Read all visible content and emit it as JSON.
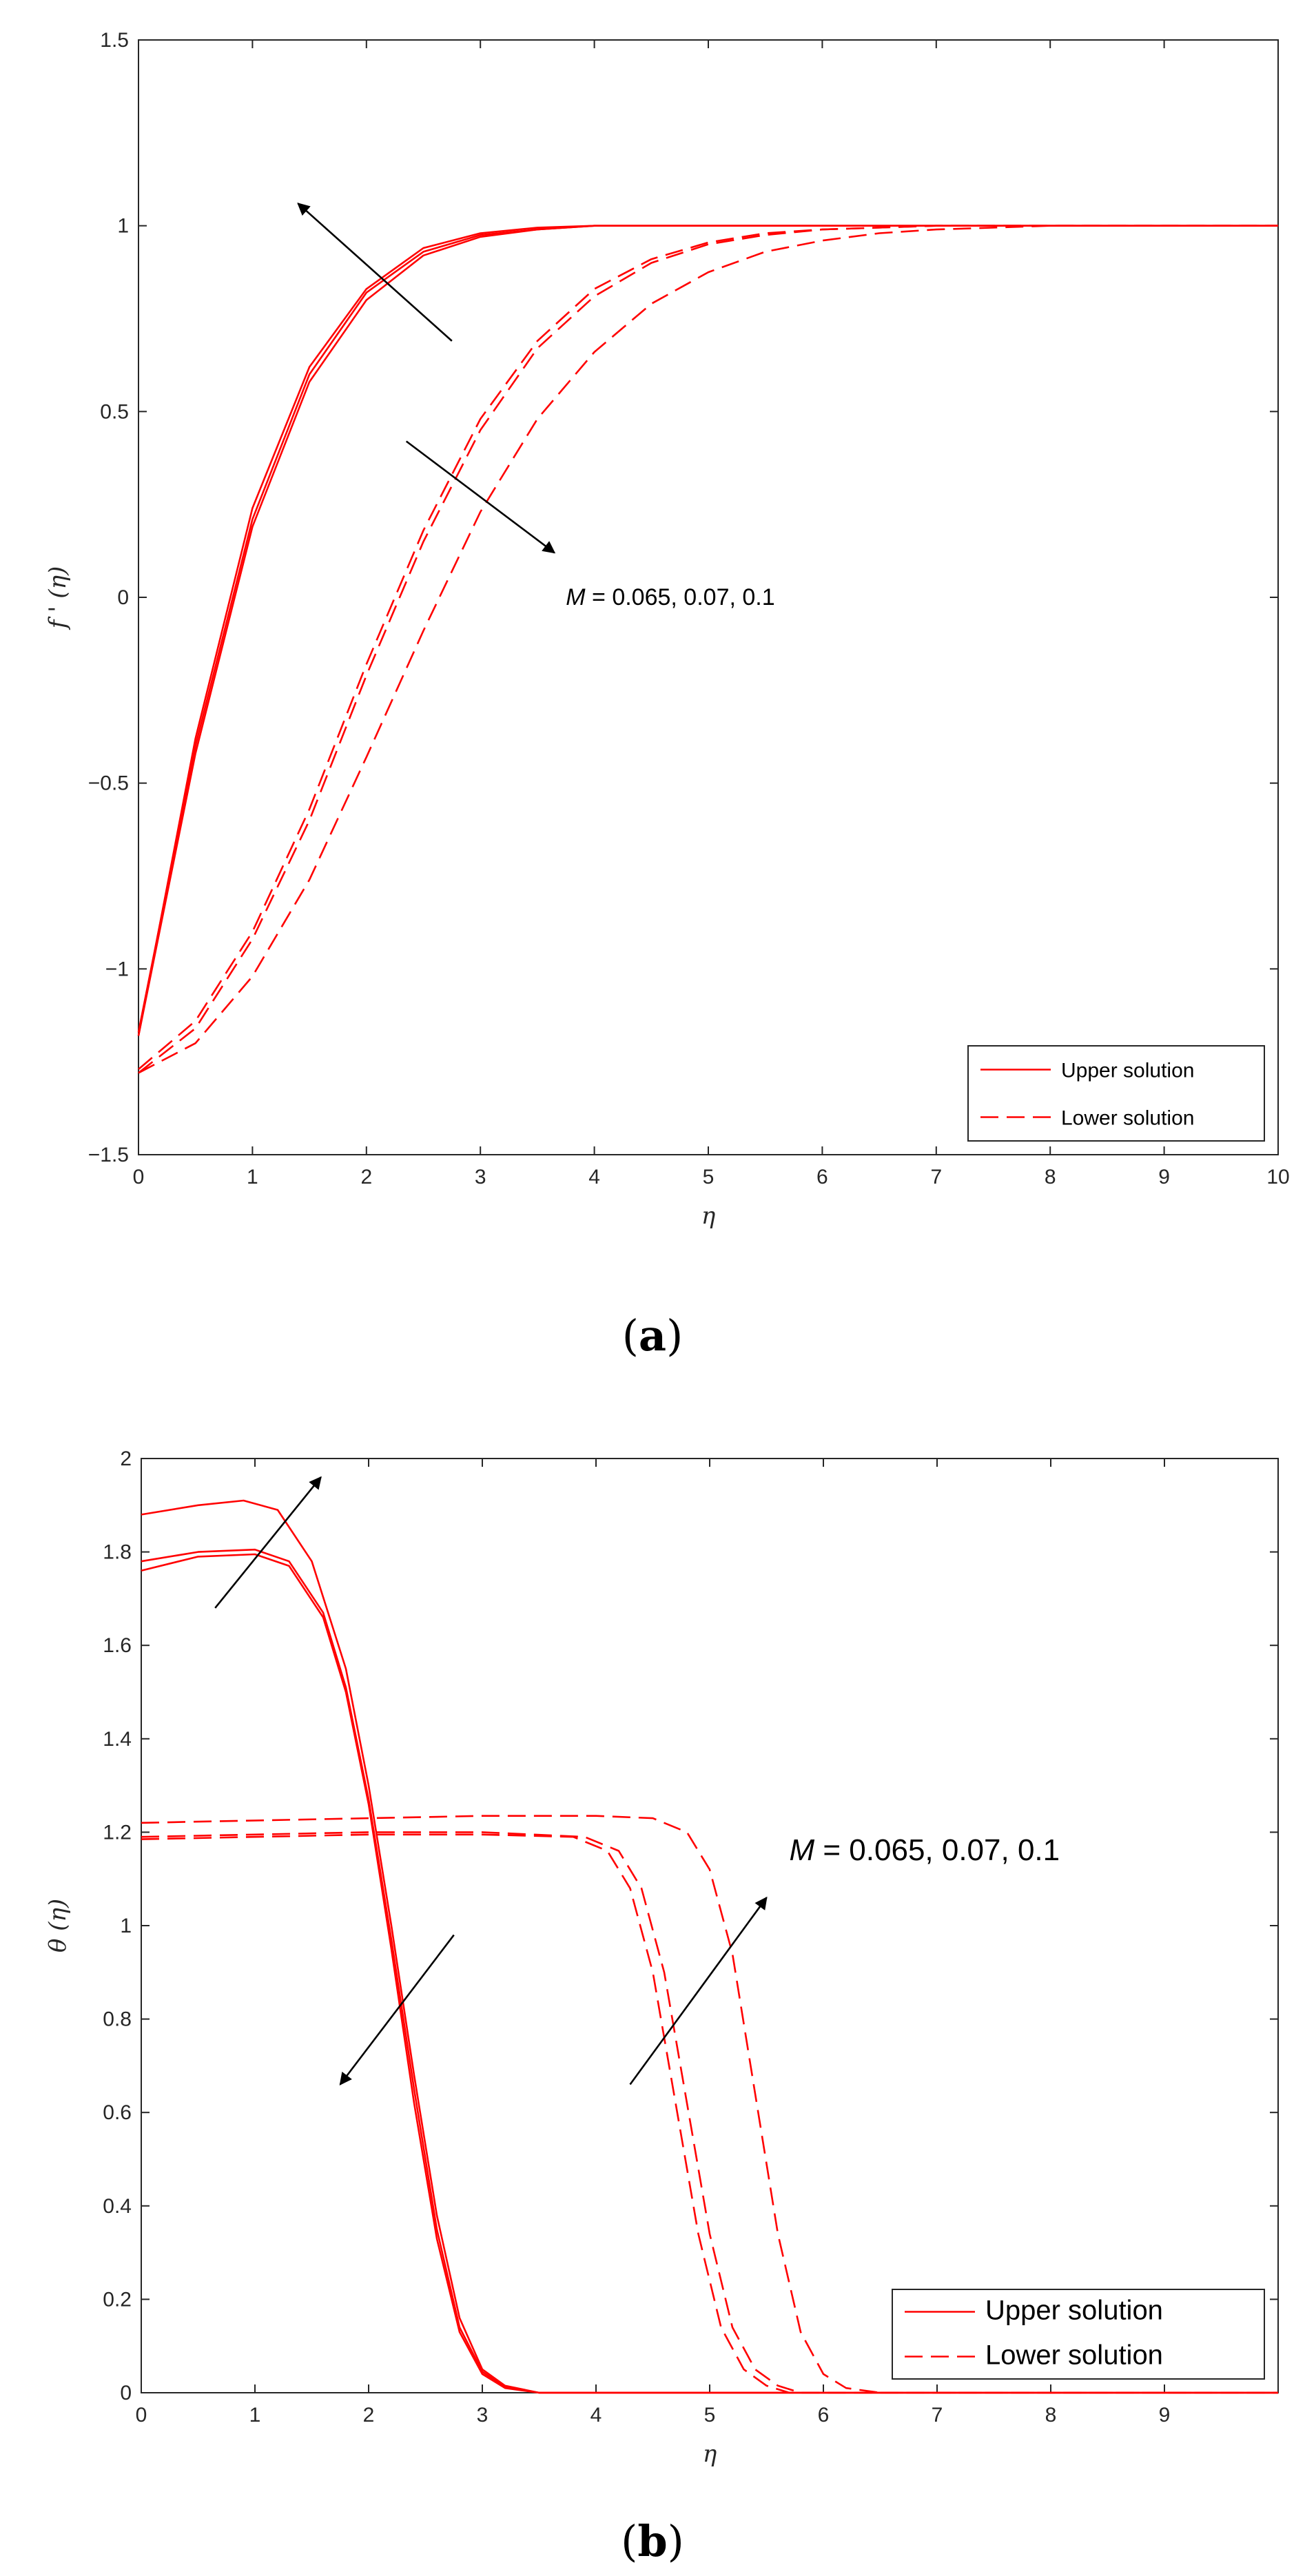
{
  "chart_data": [
    {
      "id": "a",
      "type": "line",
      "caption_open": "(",
      "caption_letter": "a",
      "caption_close": ")",
      "xlabel": "η",
      "ylabel": "f ' (η)",
      "xlim": [
        0,
        10
      ],
      "ylim": [
        -1.5,
        1.5
      ],
      "xticks": [
        0,
        1,
        2,
        3,
        4,
        5,
        6,
        7,
        8,
        9,
        10
      ],
      "yticks": [
        -1.5,
        -1,
        -0.5,
        0,
        0.5,
        1,
        1.5
      ],
      "ytick_labels": [
        "−1.5",
        "−1",
        "−0.5",
        "0",
        "0.5",
        "1",
        "1.5"
      ],
      "annotation": {
        "symbol": "M",
        "text": " = 0.065, 0.07, 0.1"
      },
      "legend": {
        "placement": "bottom-right",
        "upper": "Upper solution",
        "lower": "Lower solution"
      },
      "series": [
        {
          "name": "Upper solution, M = 0.065",
          "style": "solid",
          "x": [
            0,
            0.5,
            1,
            1.5,
            2,
            2.5,
            3,
            3.5,
            4,
            5,
            6,
            7,
            8,
            10
          ],
          "y": [
            -1.18,
            -0.38,
            0.24,
            0.62,
            0.83,
            0.94,
            0.98,
            0.995,
            1.0,
            1.0,
            1.0,
            1.0,
            1.0,
            1.0
          ]
        },
        {
          "name": "Upper solution, M = 0.07",
          "style": "solid",
          "x": [
            0,
            0.5,
            1,
            1.5,
            2,
            2.5,
            3,
            3.5,
            4,
            5,
            6,
            7,
            8,
            10
          ],
          "y": [
            -1.18,
            -0.42,
            0.19,
            0.58,
            0.8,
            0.92,
            0.97,
            0.99,
            1.0,
            1.0,
            1.0,
            1.0,
            1.0,
            1.0
          ]
        },
        {
          "name": "Upper solution, M = 0.1",
          "style": "solid",
          "x": [
            0,
            0.5,
            1,
            1.5,
            2,
            2.5,
            3,
            3.5,
            4,
            5,
            6,
            7,
            8,
            10
          ],
          "y": [
            -1.17,
            -0.4,
            0.21,
            0.6,
            0.82,
            0.93,
            0.975,
            0.99,
            1.0,
            1.0,
            1.0,
            1.0,
            1.0,
            1.0
          ]
        },
        {
          "name": "Lower solution, M = 0.065",
          "style": "dashed",
          "x": [
            0,
            0.5,
            1,
            1.5,
            2,
            2.5,
            3,
            3.5,
            4,
            4.5,
            5,
            5.5,
            6,
            7,
            8,
            10
          ],
          "y": [
            -1.27,
            -1.14,
            -0.9,
            -0.57,
            -0.18,
            0.18,
            0.48,
            0.69,
            0.83,
            0.91,
            0.955,
            0.98,
            0.99,
            1.0,
            1.0,
            1.0
          ]
        },
        {
          "name": "Lower solution, M = 0.07",
          "style": "dashed",
          "x": [
            0,
            0.5,
            1,
            1.5,
            2,
            2.5,
            3,
            3.5,
            4,
            4.5,
            5,
            5.5,
            6,
            7,
            8,
            10
          ],
          "y": [
            -1.28,
            -1.16,
            -0.92,
            -0.6,
            -0.21,
            0.15,
            0.45,
            0.67,
            0.81,
            0.9,
            0.95,
            0.975,
            0.99,
            1.0,
            1.0,
            1.0
          ]
        },
        {
          "name": "Lower solution, M = 0.1",
          "style": "dashed",
          "x": [
            0,
            0.5,
            1,
            1.5,
            2,
            2.5,
            3,
            3.5,
            4,
            4.5,
            5,
            5.5,
            6,
            6.5,
            7,
            8,
            10
          ],
          "y": [
            -1.28,
            -1.2,
            -1.02,
            -0.76,
            -0.43,
            -0.09,
            0.23,
            0.48,
            0.66,
            0.79,
            0.875,
            0.93,
            0.96,
            0.98,
            0.99,
            1.0,
            1.0
          ]
        }
      ],
      "arrows": [
        {
          "from": [
            2.75,
            0.69
          ],
          "to": [
            1.4,
            1.06
          ]
        },
        {
          "from": [
            2.35,
            0.42
          ],
          "to": [
            3.65,
            0.12
          ]
        }
      ],
      "annotation_pos": [
        3.75,
        -0.02
      ]
    },
    {
      "id": "b",
      "type": "line",
      "caption_open": "(",
      "caption_letter": "b",
      "caption_close": ")",
      "xlabel": "η",
      "ylabel": "θ (η)",
      "xlim": [
        0,
        10
      ],
      "ylim": [
        0,
        2
      ],
      "xticks": [
        0,
        1,
        2,
        3,
        4,
        5,
        6,
        7,
        8,
        9
      ],
      "yticks": [
        0,
        0.2,
        0.4,
        0.6,
        0.8,
        1,
        1.2,
        1.4,
        1.6,
        1.8,
        2
      ],
      "ytick_labels": [
        "0",
        "0.2",
        "0.4",
        "0.6",
        "0.8",
        "1",
        "1.2",
        "1.4",
        "1.6",
        "1.8",
        "2"
      ],
      "annotation": {
        "symbol": "M",
        "text": " = 0.065, 0.07, 0.1"
      },
      "legend": {
        "placement": "bottom-right",
        "upper": "Upper solution",
        "lower": "Lower solution"
      },
      "series": [
        {
          "name": "Upper solution, M = 0.065",
          "style": "solid",
          "x": [
            0,
            0.5,
            1,
            1.3,
            1.6,
            1.8,
            2,
            2.2,
            2.4,
            2.6,
            2.8,
            3,
            3.2,
            3.5,
            4,
            10
          ],
          "y": [
            1.76,
            1.79,
            1.795,
            1.77,
            1.66,
            1.5,
            1.26,
            0.95,
            0.62,
            0.33,
            0.13,
            0.04,
            0.01,
            0.0,
            0.0,
            0.0
          ]
        },
        {
          "name": "Upper solution, M = 0.07",
          "style": "solid",
          "x": [
            0,
            0.5,
            1,
            1.3,
            1.6,
            1.8,
            2,
            2.2,
            2.4,
            2.6,
            2.8,
            3,
            3.2,
            3.5,
            4,
            10
          ],
          "y": [
            1.78,
            1.8,
            1.805,
            1.78,
            1.67,
            1.51,
            1.27,
            0.97,
            0.65,
            0.35,
            0.14,
            0.045,
            0.012,
            0.0,
            0.0,
            0.0
          ]
        },
        {
          "name": "Upper solution, M = 0.1",
          "style": "solid",
          "x": [
            0,
            0.5,
            0.9,
            1.2,
            1.5,
            1.8,
            2,
            2.2,
            2.4,
            2.6,
            2.8,
            3,
            3.2,
            3.5,
            4,
            10
          ],
          "y": [
            1.88,
            1.9,
            1.91,
            1.89,
            1.78,
            1.55,
            1.3,
            1.0,
            0.68,
            0.38,
            0.16,
            0.05,
            0.015,
            0.0,
            0.0,
            0.0
          ]
        },
        {
          "name": "Lower solution, M = 0.065",
          "style": "dashed",
          "x": [
            0,
            1,
            2,
            3,
            3.8,
            4.1,
            4.3,
            4.5,
            4.7,
            4.9,
            5.1,
            5.3,
            5.5,
            5.7,
            6,
            10
          ],
          "y": [
            1.185,
            1.19,
            1.195,
            1.195,
            1.19,
            1.16,
            1.08,
            0.9,
            0.62,
            0.34,
            0.14,
            0.05,
            0.015,
            0.0,
            0.0,
            0.0
          ]
        },
        {
          "name": "Lower solution, M = 0.07",
          "style": "dashed",
          "x": [
            0,
            1,
            2,
            3,
            3.9,
            4.2,
            4.4,
            4.6,
            4.8,
            5,
            5.2,
            5.4,
            5.6,
            5.8,
            6,
            10
          ],
          "y": [
            1.19,
            1.195,
            1.2,
            1.2,
            1.19,
            1.16,
            1.08,
            0.9,
            0.62,
            0.34,
            0.14,
            0.05,
            0.015,
            0.0,
            0.0,
            0.0
          ]
        },
        {
          "name": "Lower solution, M = 0.1",
          "style": "dashed",
          "x": [
            0,
            1,
            2,
            3,
            4,
            4.5,
            4.8,
            5,
            5.2,
            5.4,
            5.6,
            5.8,
            6,
            6.2,
            6.5,
            10
          ],
          "y": [
            1.22,
            1.225,
            1.23,
            1.235,
            1.235,
            1.23,
            1.2,
            1.12,
            0.94,
            0.64,
            0.34,
            0.13,
            0.04,
            0.01,
            0.0,
            0.0
          ]
        }
      ],
      "arrows": [
        {
          "from": [
            0.65,
            1.68
          ],
          "to": [
            1.58,
            1.96
          ]
        },
        {
          "from": [
            2.75,
            0.98
          ],
          "to": [
            1.75,
            0.66
          ]
        },
        {
          "from": [
            4.3,
            0.66
          ],
          "to": [
            5.5,
            1.06
          ]
        }
      ],
      "annotation_pos": [
        5.7,
        1.14
      ]
    }
  ],
  "colors": {
    "curve": "#ff0000",
    "arrow": "#000000",
    "axis": "#262626"
  }
}
